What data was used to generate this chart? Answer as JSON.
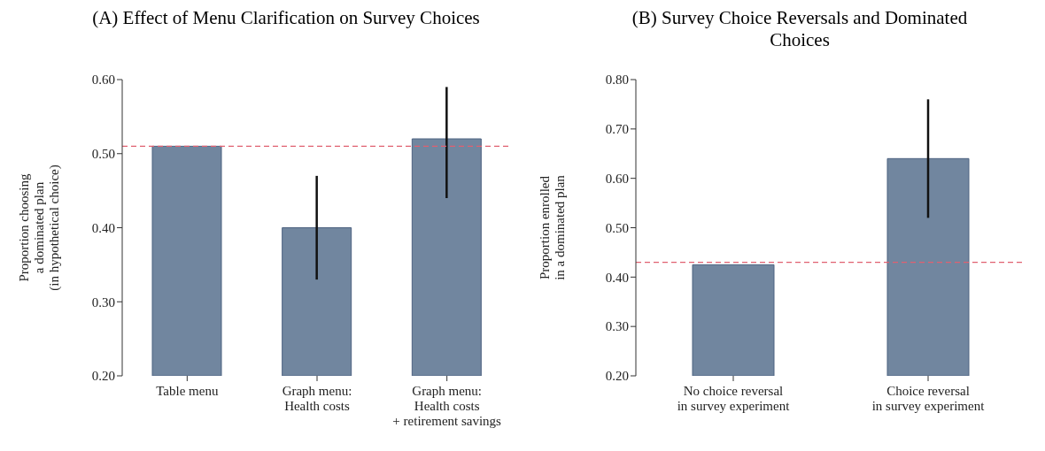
{
  "chart_data": [
    {
      "type": "bar",
      "title": "(A) Effect of Menu Clarification on Survey Choices",
      "ylabel": "Proportion choosing\na dominated plan\n(in hypothetical choice)",
      "categories": [
        "Table menu",
        "Graph menu:\nHealth costs",
        "Graph menu:\nHealth costs\n+ retirement savings"
      ],
      "values": [
        0.51,
        0.4,
        0.52
      ],
      "color": "#71869f",
      "errors": [
        null,
        [
          0.33,
          0.47
        ],
        [
          0.44,
          0.59
        ]
      ],
      "ylim": [
        0.2,
        0.6
      ],
      "yticks": [
        {
          "value": 0.2,
          "label": "0.20"
        },
        {
          "value": 0.3,
          "label": "0.30"
        },
        {
          "value": 0.4,
          "label": "0.40"
        },
        {
          "value": 0.5,
          "label": "0.50"
        },
        {
          "value": 0.6,
          "label": "0.60"
        }
      ],
      "ref_lines": [
        {
          "axis": "y",
          "value": 0.51,
          "label": null,
          "color": "#e06070",
          "line_style": "dashed"
        }
      ],
      "grid": false,
      "legend": false
    },
    {
      "type": "bar",
      "title": "(B) Survey Choice Reversals and Dominated Choices",
      "ylabel": "Proportion enrolled\nin a dominated plan",
      "categories": [
        "No choice reversal\nin survey experiment",
        "Choice reversal\nin survey experiment"
      ],
      "values": [
        0.425,
        0.64
      ],
      "color": "#71869f",
      "errors": [
        null,
        [
          0.52,
          0.76
        ]
      ],
      "ylim": [
        0.2,
        0.8
      ],
      "yticks": [
        {
          "value": 0.2,
          "label": "0.20"
        },
        {
          "value": 0.3,
          "label": "0.30"
        },
        {
          "value": 0.4,
          "label": "0.40"
        },
        {
          "value": 0.5,
          "label": "0.50"
        },
        {
          "value": 0.6,
          "label": "0.60"
        },
        {
          "value": 0.7,
          "label": "0.70"
        },
        {
          "value": 0.8,
          "label": "0.80"
        }
      ],
      "ref_lines": [
        {
          "axis": "y",
          "value": 0.43,
          "label": null,
          "color": "#e06070",
          "line_style": "dashed"
        }
      ],
      "grid": false,
      "legend": false
    }
  ]
}
